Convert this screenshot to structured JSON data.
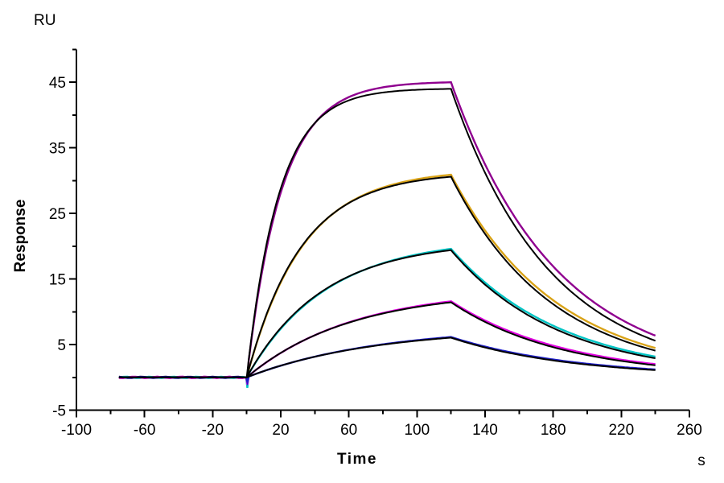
{
  "window": {
    "background_color": "#FFFFFF",
    "description": "SPR sensorgram (Biacore-style kinetics plot): five concentration curves with overlaid 1:1 binding fits"
  },
  "chart_data": {
    "type": "line",
    "title": "",
    "xlabel": "Time",
    "x_axis_unit_label": "s",
    "ylabel": "Response",
    "y_axis_unit_label": "RU",
    "xlim": [
      -100,
      260
    ],
    "ylim": [
      -5,
      50
    ],
    "x_ticks_major": [
      -100,
      -60,
      -20,
      20,
      60,
      100,
      140,
      180,
      220,
      260
    ],
    "x_ticks_minor": [
      -80,
      -40,
      0,
      40,
      80,
      120,
      160,
      200,
      240
    ],
    "y_ticks_major": [
      -5,
      5,
      15,
      25,
      35,
      45
    ],
    "y_ticks_minor": [
      0,
      10,
      20,
      30,
      40,
      50
    ],
    "grid": false,
    "legend_position": "none",
    "axis_color": "#000000",
    "phases": {
      "baseline_start": -75,
      "injection_start": 0,
      "injection_end": 120,
      "run_end": 240
    },
    "baseline_noise_ru": 0.1,
    "series": [
      {
        "name": "curve-1-data",
        "role": "data",
        "color": "#8F008F",
        "model": {
          "peak": 45.0,
          "kobs": 0.049,
          "koff": 0.0163,
          "dip": -0.6
        },
        "points": [
          [
            -75,
            0
          ],
          [
            0,
            0
          ],
          [
            20,
            28.2
          ],
          [
            40,
            38.8
          ],
          [
            60,
            42.7
          ],
          [
            80,
            44.2
          ],
          [
            100,
            44.8
          ],
          [
            120,
            45.0
          ],
          [
            140,
            32.5
          ],
          [
            160,
            23.4
          ],
          [
            180,
            16.9
          ],
          [
            200,
            12.2
          ],
          [
            220,
            8.8
          ],
          [
            240,
            6.4
          ]
        ]
      },
      {
        "name": "curve-1-fit",
        "role": "fit",
        "color": "#000000",
        "model": {
          "peak": 44.0,
          "kobs": 0.053,
          "koff": 0.0172
        },
        "points": [
          [
            -75,
            0
          ],
          [
            0,
            0
          ],
          [
            120,
            44.0
          ],
          [
            240,
            5.6
          ]
        ]
      },
      {
        "name": "curve-2-data",
        "role": "data",
        "color": "#D9A318",
        "model": {
          "peak": 30.9,
          "kobs": 0.0305,
          "koff": 0.0161,
          "dip": -0.9
        },
        "points": [
          [
            -75,
            0
          ],
          [
            0,
            0
          ],
          [
            20,
            14.5
          ],
          [
            40,
            22.4
          ],
          [
            60,
            26.6
          ],
          [
            80,
            29.0
          ],
          [
            100,
            30.2
          ],
          [
            120,
            30.9
          ],
          [
            140,
            22.4
          ],
          [
            160,
            16.2
          ],
          [
            180,
            11.8
          ],
          [
            200,
            8.5
          ],
          [
            220,
            6.2
          ],
          [
            240,
            4.5
          ]
        ]
      },
      {
        "name": "curve-2-fit",
        "role": "fit",
        "color": "#000000",
        "model": {
          "peak": 30.6,
          "kobs": 0.0315,
          "koff": 0.0168
        },
        "points": [
          [
            -75,
            0
          ],
          [
            0,
            0
          ],
          [
            120,
            30.6
          ],
          [
            240,
            4.1
          ]
        ]
      },
      {
        "name": "curve-3-data",
        "role": "data",
        "color": "#00C4C4",
        "model": {
          "peak": 19.6,
          "kobs": 0.0215,
          "koff": 0.0152,
          "dip": -1.6
        },
        "points": [
          [
            -75,
            0
          ],
          [
            0,
            0
          ],
          [
            20,
            7.4
          ],
          [
            40,
            12.2
          ],
          [
            60,
            15.4
          ],
          [
            80,
            17.4
          ],
          [
            100,
            18.7
          ],
          [
            120,
            19.6
          ],
          [
            140,
            14.5
          ],
          [
            160,
            10.7
          ],
          [
            180,
            7.9
          ],
          [
            200,
            5.8
          ],
          [
            220,
            4.3
          ],
          [
            240,
            3.2
          ]
        ]
      },
      {
        "name": "curve-3-fit",
        "role": "fit",
        "color": "#000000",
        "model": {
          "peak": 19.4,
          "kobs": 0.0225,
          "koff": 0.0158
        },
        "points": [
          [
            -75,
            0
          ],
          [
            0,
            0
          ],
          [
            120,
            19.4
          ],
          [
            240,
            2.9
          ]
        ]
      },
      {
        "name": "curve-4-data",
        "role": "data",
        "color": "#E100E1",
        "model": {
          "peak": 11.6,
          "kobs": 0.016,
          "koff": 0.0146,
          "dip": -1.1
        },
        "points": [
          [
            -75,
            0
          ],
          [
            0,
            0
          ],
          [
            20,
            3.7
          ],
          [
            40,
            6.4
          ],
          [
            60,
            8.4
          ],
          [
            80,
            9.8
          ],
          [
            100,
            10.8
          ],
          [
            120,
            11.6
          ],
          [
            140,
            8.7
          ],
          [
            160,
            6.5
          ],
          [
            180,
            4.8
          ],
          [
            200,
            3.6
          ],
          [
            220,
            2.7
          ],
          [
            240,
            2.0
          ]
        ]
      },
      {
        "name": "curve-4-fit",
        "role": "fit",
        "color": "#000000",
        "model": {
          "peak": 11.45,
          "kobs": 0.0165,
          "koff": 0.0152
        },
        "points": [
          [
            -75,
            0
          ],
          [
            0,
            0
          ],
          [
            120,
            11.45
          ],
          [
            240,
            1.85
          ]
        ]
      },
      {
        "name": "curve-5-data",
        "role": "data",
        "color": "#1E1EC8",
        "model": {
          "peak": 6.15,
          "kobs": 0.013,
          "koff": 0.0136,
          "dip": -0.7
        },
        "points": [
          [
            -75,
            0
          ],
          [
            0,
            0
          ],
          [
            20,
            1.8
          ],
          [
            40,
            3.2
          ],
          [
            60,
            4.2
          ],
          [
            80,
            5.0
          ],
          [
            100,
            5.7
          ],
          [
            120,
            6.2
          ],
          [
            140,
            4.7
          ],
          [
            160,
            3.6
          ],
          [
            180,
            2.7
          ],
          [
            200,
            2.1
          ],
          [
            220,
            1.6
          ],
          [
            240,
            1.2
          ]
        ]
      },
      {
        "name": "curve-5-fit",
        "role": "fit",
        "color": "#000000",
        "model": {
          "peak": 6.05,
          "kobs": 0.0135,
          "koff": 0.0142
        },
        "points": [
          [
            -75,
            0
          ],
          [
            0,
            0
          ],
          [
            120,
            6.05
          ],
          [
            240,
            1.1
          ]
        ]
      }
    ]
  }
}
